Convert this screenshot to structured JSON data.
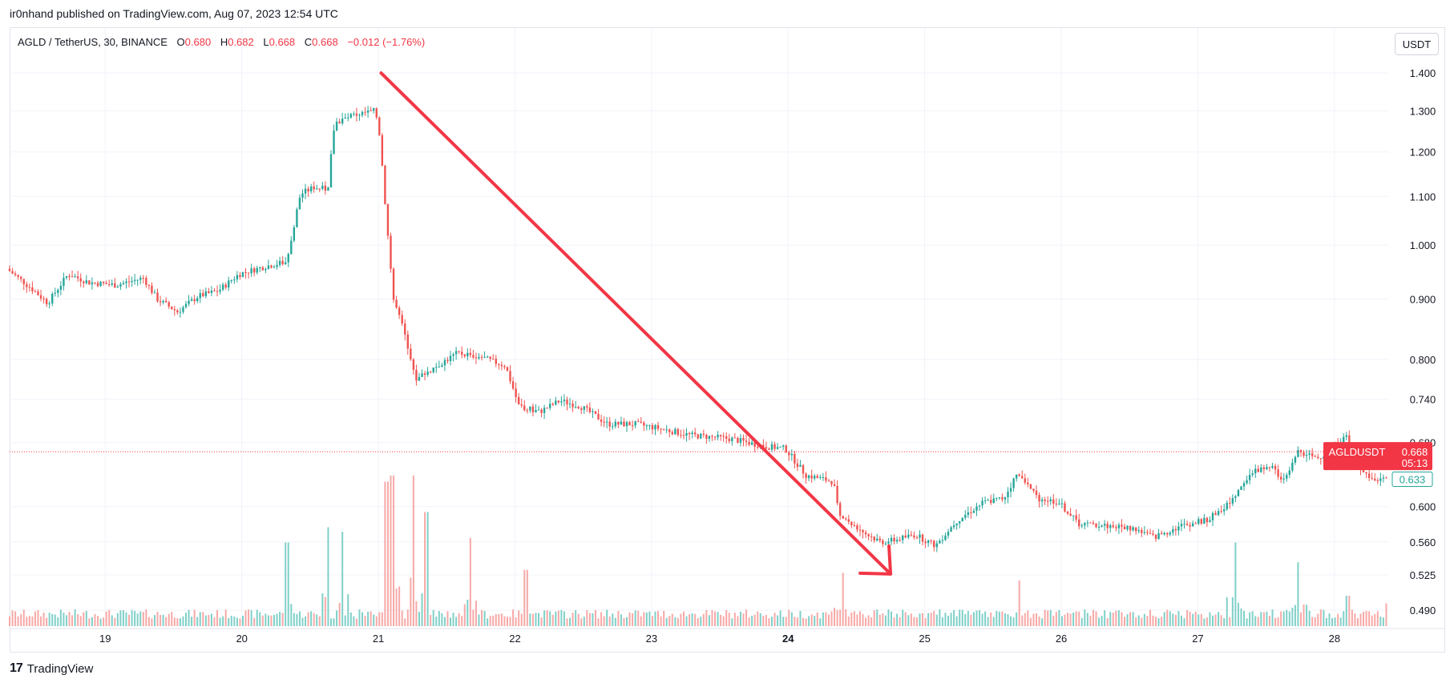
{
  "publisher": "ir0nhand published on TradingView.com, Aug 07, 2023 12:54 UTC",
  "legend": {
    "symbol": "AGLD / TetherUS, 30, BINANCE",
    "o_label": "O",
    "o_value": "0.680",
    "h_label": "H",
    "h_value": "0.682",
    "l_label": "L",
    "l_value": "0.668",
    "c_label": "C",
    "c_value": "0.668",
    "change": "−0.012 (−1.76%)"
  },
  "currency_button": "USDT",
  "footer": {
    "logo_text": "TradingView",
    "logo_mark": "17"
  },
  "colors": {
    "up": "#26a69a",
    "down": "#ef5350",
    "up_vol": "#7fd0c8",
    "down_vol": "#f7a9a7",
    "arrow": "#f23645",
    "grid": "#f0f3fa",
    "last_price": "#f23645"
  },
  "chart_data": {
    "type": "candlestick",
    "symbol": "AGLDUSDT",
    "interval": "30",
    "exchange": "BINANCE",
    "y_scale": "log",
    "price_ticks": [
      "1.400",
      "1.300",
      "1.200",
      "1.100",
      "1.000",
      "0.900",
      "0.800",
      "0.740",
      "0.680",
      "0.600",
      "0.560",
      "0.525",
      "0.490"
    ],
    "date_ticks": [
      {
        "label": "19",
        "day": 19,
        "bold": false
      },
      {
        "label": "20",
        "day": 20,
        "bold": false
      },
      {
        "label": "21",
        "day": 21,
        "bold": false
      },
      {
        "label": "22",
        "day": 22,
        "bold": false
      },
      {
        "label": "23",
        "day": 23,
        "bold": false
      },
      {
        "label": "24",
        "day": 24,
        "bold": true
      },
      {
        "label": "25",
        "day": 25,
        "bold": false
      },
      {
        "label": "26",
        "day": 26,
        "bold": false
      },
      {
        "label": "27",
        "day": 27,
        "bold": false
      },
      {
        "label": "28",
        "day": 28,
        "bold": false
      }
    ],
    "x_range_days": [
      18.3,
      28.4
    ],
    "price_path": [
      [
        18.3,
        0.955
      ],
      [
        18.5,
        0.915
      ],
      [
        18.6,
        0.893
      ],
      [
        18.75,
        0.945
      ],
      [
        18.9,
        0.93
      ],
      [
        19.1,
        0.925
      ],
      [
        19.3,
        0.938
      ],
      [
        19.4,
        0.9
      ],
      [
        19.55,
        0.878
      ],
      [
        19.7,
        0.905
      ],
      [
        19.85,
        0.915
      ],
      [
        20.0,
        0.945
      ],
      [
        20.2,
        0.96
      ],
      [
        20.35,
        0.968
      ],
      [
        20.45,
        1.105
      ],
      [
        20.55,
        1.12
      ],
      [
        20.65,
        1.115
      ],
      [
        20.7,
        1.27
      ],
      [
        20.85,
        1.29
      ],
      [
        21.0,
        1.3
      ],
      [
        21.03,
        1.24
      ],
      [
        21.08,
        1.05
      ],
      [
        21.13,
        0.9
      ],
      [
        21.2,
        0.85
      ],
      [
        21.3,
        0.77
      ],
      [
        21.45,
        0.79
      ],
      [
        21.6,
        0.81
      ],
      [
        21.75,
        0.805
      ],
      [
        21.95,
        0.79
      ],
      [
        22.05,
        0.73
      ],
      [
        22.2,
        0.722
      ],
      [
        22.35,
        0.738
      ],
      [
        22.5,
        0.73
      ],
      [
        22.7,
        0.705
      ],
      [
        22.9,
        0.705
      ],
      [
        23.05,
        0.7
      ],
      [
        23.3,
        0.69
      ],
      [
        23.6,
        0.685
      ],
      [
        23.85,
        0.675
      ],
      [
        24.0,
        0.672
      ],
      [
        24.15,
        0.638
      ],
      [
        24.35,
        0.63
      ],
      [
        24.4,
        0.59
      ],
      [
        24.6,
        0.568
      ],
      [
        24.7,
        0.56
      ],
      [
        24.8,
        0.562
      ],
      [
        24.95,
        0.568
      ],
      [
        25.1,
        0.556
      ],
      [
        25.25,
        0.583
      ],
      [
        25.45,
        0.605
      ],
      [
        25.6,
        0.61
      ],
      [
        25.7,
        0.64
      ],
      [
        25.85,
        0.61
      ],
      [
        26.0,
        0.605
      ],
      [
        26.15,
        0.58
      ],
      [
        26.35,
        0.578
      ],
      [
        26.55,
        0.575
      ],
      [
        26.7,
        0.565
      ],
      [
        26.9,
        0.578
      ],
      [
        27.1,
        0.585
      ],
      [
        27.25,
        0.605
      ],
      [
        27.4,
        0.64
      ],
      [
        27.55,
        0.65
      ],
      [
        27.65,
        0.63
      ],
      [
        27.75,
        0.668
      ],
      [
        27.9,
        0.66
      ],
      [
        28.0,
        0.67
      ],
      [
        28.1,
        0.69
      ],
      [
        28.2,
        0.65
      ],
      [
        28.3,
        0.632
      ],
      [
        28.4,
        0.633
      ]
    ],
    "drawn_arrow": {
      "from": {
        "day": 21.02,
        "price": 1.4
      },
      "to": {
        "day": 24.75,
        "price": 0.526
      }
    },
    "last_price": {
      "symbol_label": "AGLDUSDT",
      "value": "0.668",
      "price": 0.668,
      "countdown": "05:13"
    },
    "secondary_label": {
      "value": "0.633",
      "price": 0.633
    },
    "volume_spikes": [
      {
        "day": 20.33,
        "level": 0.55
      },
      {
        "day": 20.63,
        "level": 0.65
      },
      {
        "day": 20.74,
        "level": 0.62
      },
      {
        "day": 21.06,
        "level": 0.95
      },
      {
        "day": 21.1,
        "level": 0.99
      },
      {
        "day": 21.26,
        "level": 0.99
      },
      {
        "day": 21.35,
        "level": 0.75
      },
      {
        "day": 21.68,
        "level": 0.58
      },
      {
        "day": 22.08,
        "level": 0.37
      },
      {
        "day": 24.4,
        "level": 0.35
      },
      {
        "day": 25.7,
        "level": 0.3
      },
      {
        "day": 27.27,
        "level": 0.55
      },
      {
        "day": 27.74,
        "level": 0.42
      },
      {
        "day": 28.1,
        "level": 0.2
      },
      {
        "day": 28.38,
        "level": 0.15
      }
    ]
  }
}
